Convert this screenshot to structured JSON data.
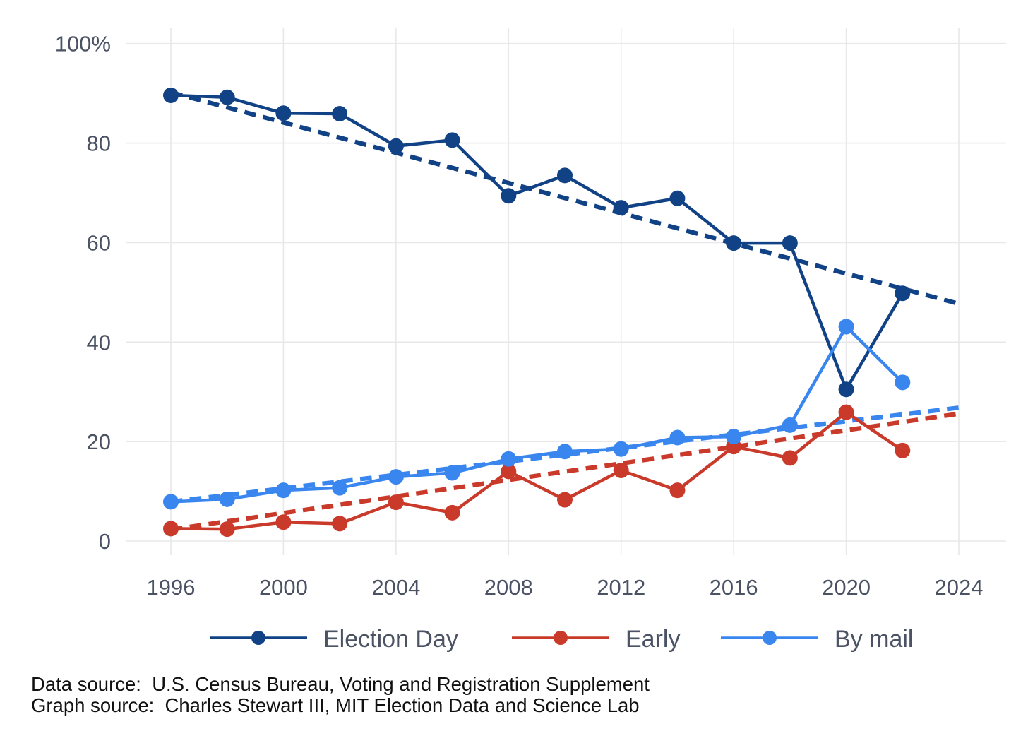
{
  "chart_data": {
    "type": "line",
    "title": "",
    "description": "Share of voters by voting mode in U.S. federal elections, with dashed linear trend lines",
    "x_years": [
      1996,
      1998,
      2000,
      2002,
      2004,
      2006,
      2008,
      2010,
      2012,
      2014,
      2016,
      2018,
      2020,
      2022
    ],
    "series": [
      {
        "name": "Election Day",
        "color": "#114285",
        "values": [
          89.6,
          89.2,
          86.0,
          85.9,
          79.4,
          80.6,
          69.4,
          73.5,
          67.0,
          68.9,
          59.9,
          59.9,
          30.5,
          49.8
        ],
        "trend": {
          "start_year": 1996,
          "end_year": 2024,
          "start_value": 90.2,
          "end_value": 47.7
        }
      },
      {
        "name": "Early",
        "color": "#C93A2B",
        "values": [
          2.5,
          2.4,
          3.8,
          3.5,
          7.8,
          5.7,
          14.0,
          8.3,
          14.2,
          10.2,
          19.0,
          16.7,
          25.9,
          18.2
        ],
        "trend": {
          "start_year": 1996,
          "end_year": 2024,
          "start_value": 2.3,
          "end_value": 25.6
        }
      },
      {
        "name": "By mail",
        "color": "#3A86EF",
        "values": [
          7.9,
          8.4,
          10.2,
          10.7,
          12.9,
          13.7,
          16.5,
          18.0,
          18.5,
          20.8,
          21.0,
          23.3,
          43.1,
          31.9
        ],
        "trend": {
          "start_year": 1996,
          "end_year": 2024,
          "start_value": 7.9,
          "end_value": 26.8
        }
      }
    ],
    "x_ticks": [
      1996,
      2000,
      2004,
      2008,
      2012,
      2016,
      2020,
      2024
    ],
    "y_ticks": [
      {
        "value": 0,
        "label": "0"
      },
      {
        "value": 20,
        "label": "20"
      },
      {
        "value": 40,
        "label": "40"
      },
      {
        "value": 60,
        "label": "60"
      },
      {
        "value": 80,
        "label": "80"
      },
      {
        "value": 100,
        "label": "100%"
      }
    ],
    "xlim": [
      1994.4,
      2026.3
    ],
    "ylim": [
      0,
      100
    ],
    "grid": true,
    "legend_position": "bottom",
    "trend_style": "dashed"
  },
  "footer": {
    "data_source": "Data source:  U.S. Census Bureau, Voting and Registration Supplement",
    "graph_source": "Graph source:  Charles Stewart III, MIT Election Data and Science Lab"
  },
  "colors": {
    "axis_text": "#4A5264",
    "legend_text": "#4A5264",
    "gridline": "#E8E8EA",
    "footer_text": "#111111",
    "background": "#FFFFFF"
  }
}
